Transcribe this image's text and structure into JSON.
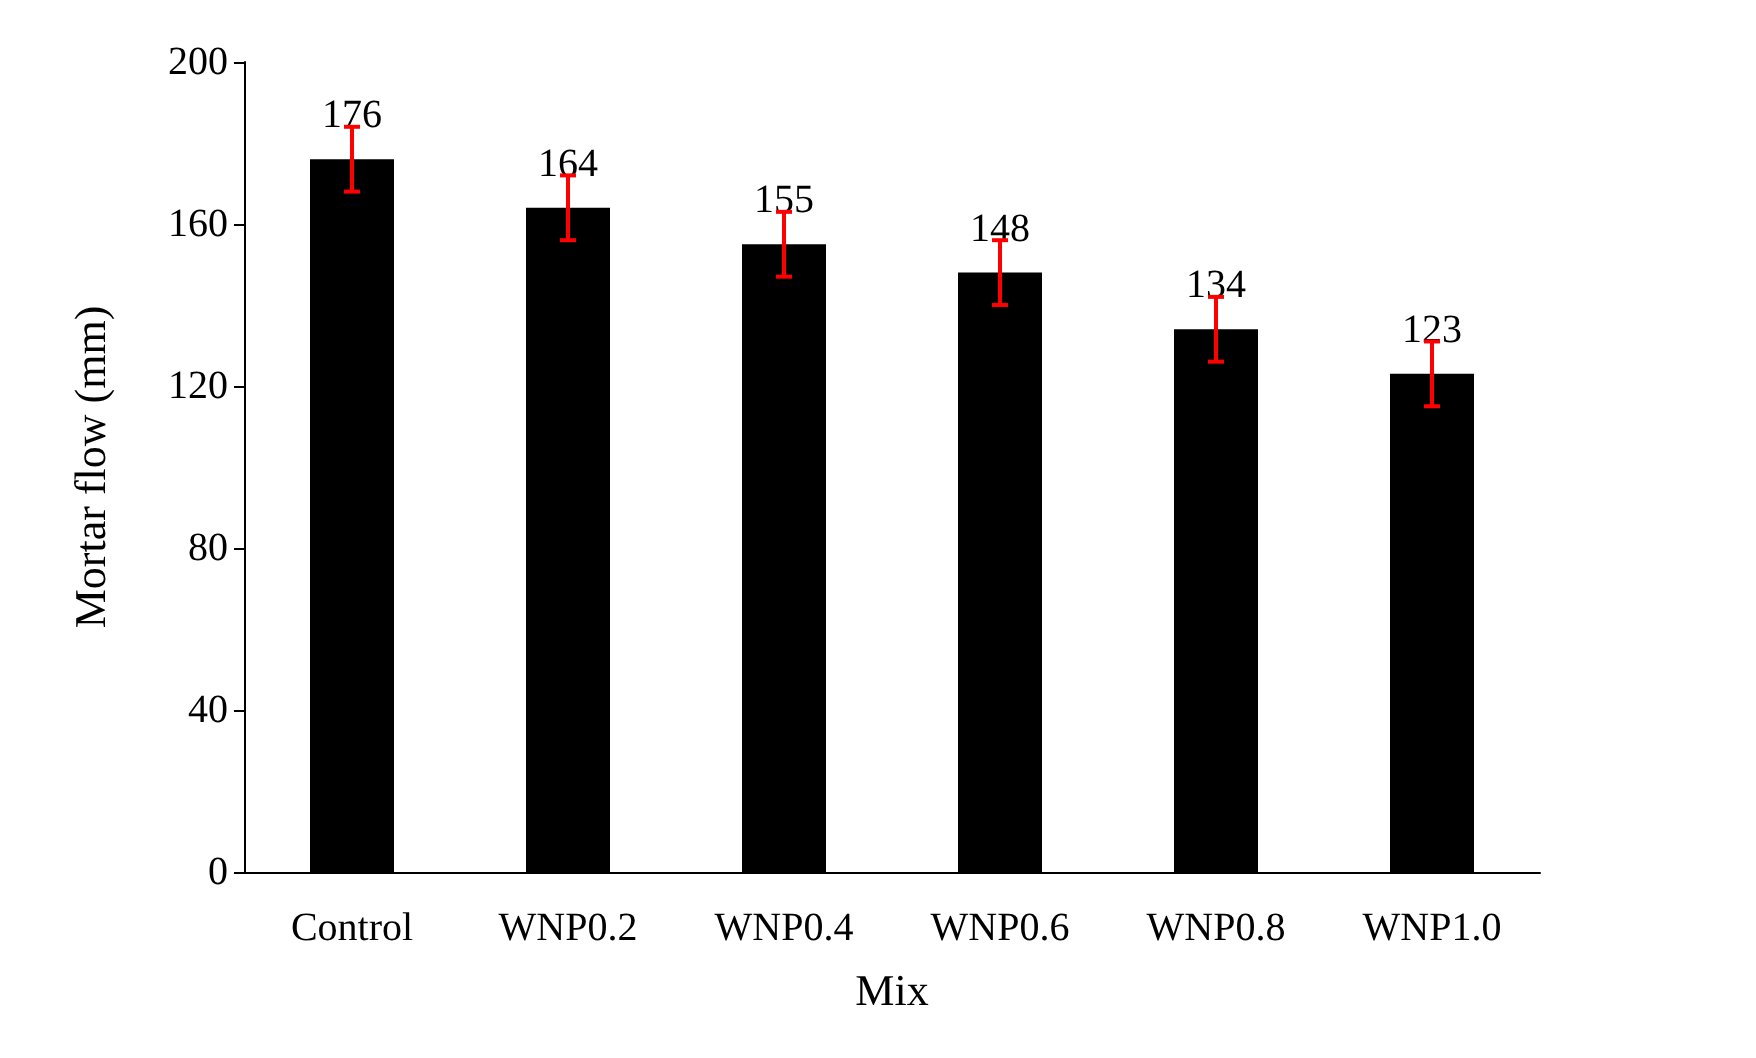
{
  "chart_data": {
    "type": "bar",
    "xlabel": "Mix",
    "ylabel": "Mortar flow (mm)",
    "categories": [
      "Control",
      "WNP0.2",
      "WNP0.4",
      "WNP0.6",
      "WNP0.8",
      "WNP1.0"
    ],
    "values": [
      176,
      164,
      155,
      148,
      134,
      123
    ],
    "errors": [
      8,
      8,
      8,
      8,
      8,
      8
    ],
    "color": "#000000",
    "ylim": [
      0,
      200
    ],
    "yticks": [
      0,
      40,
      80,
      120,
      160,
      200
    ],
    "grid": false,
    "data_labels": true
  }
}
